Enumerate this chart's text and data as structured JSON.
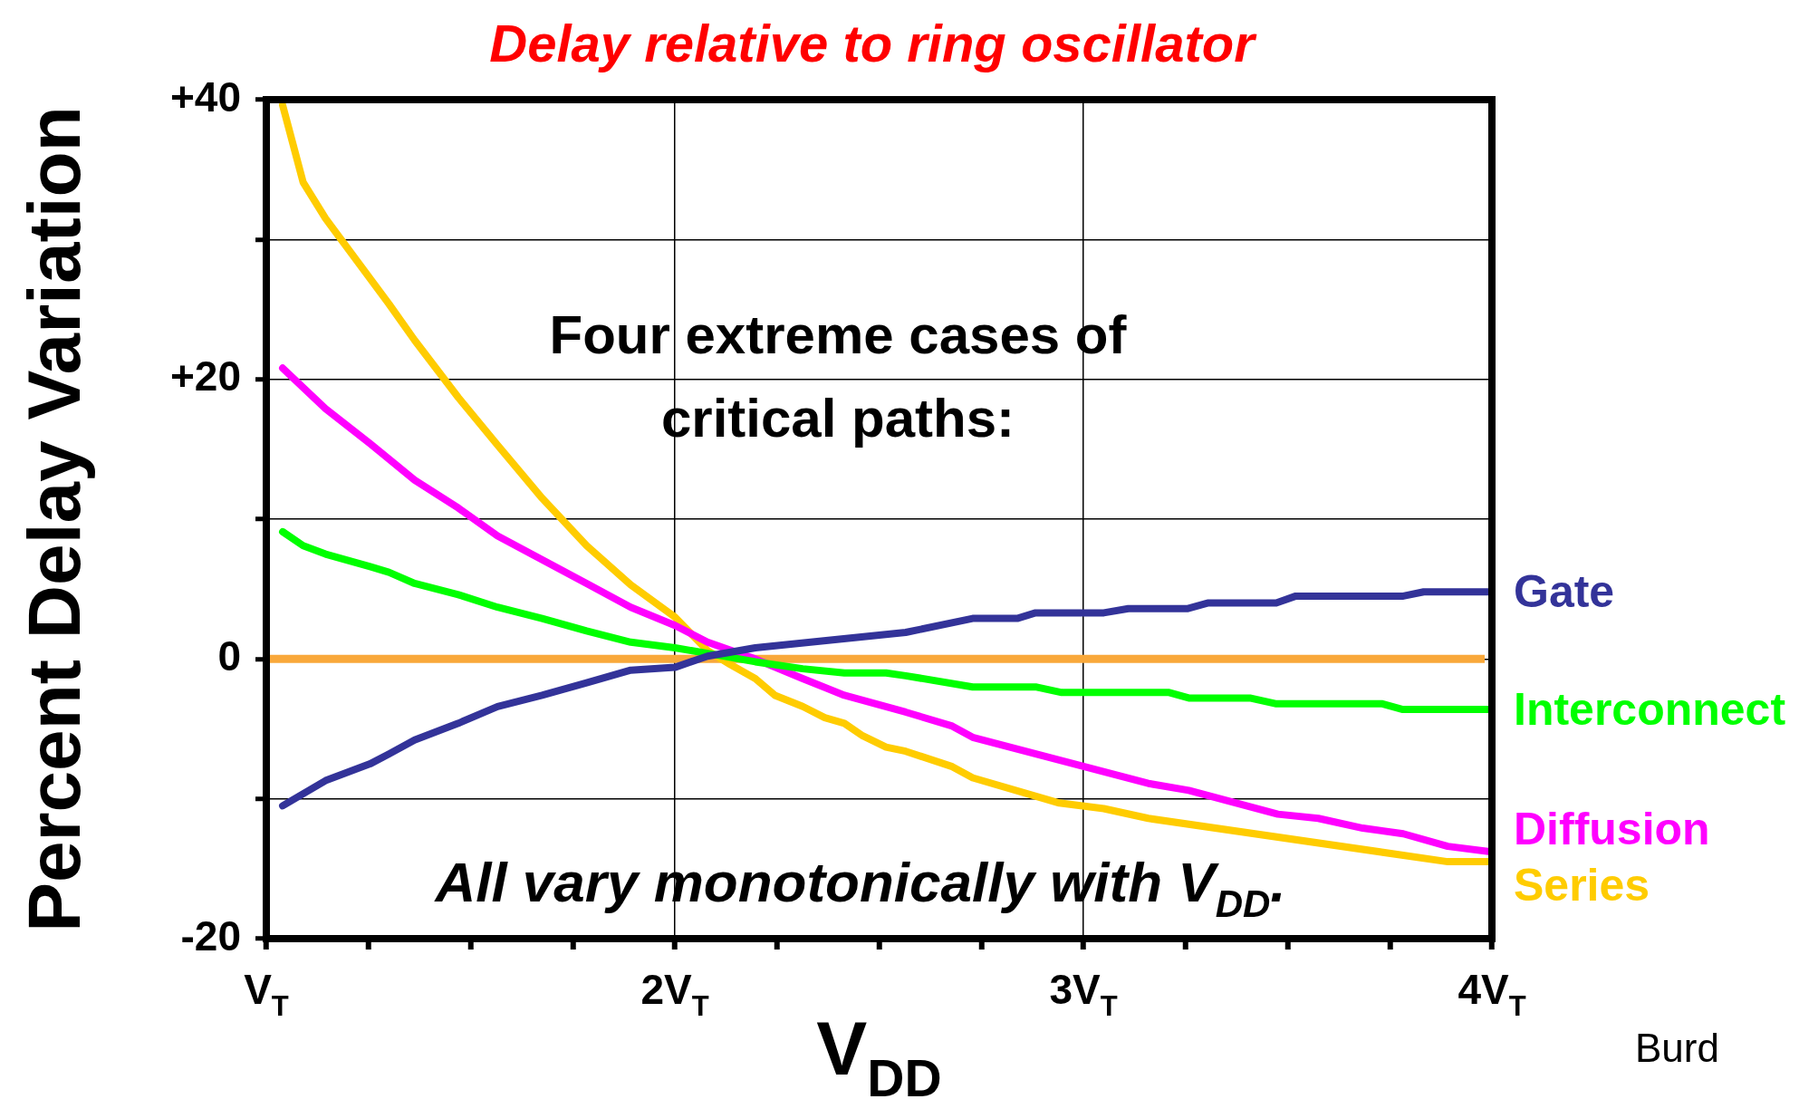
{
  "chart_data": {
    "type": "line",
    "title": "Delay relative to ring oscillator",
    "xlabel": "V$_{DD}$",
    "ylabel": "Percent Delay Variation",
    "annotations": [
      "Four extreme cases of critical paths:",
      "All vary monotonically with V$_{DD}$.",
      "Burd"
    ],
    "xlim": [
      1,
      4
    ],
    "ylim": [
      -20,
      40
    ],
    "xticks": [
      {
        "value": 1,
        "label": "V$_{T}$"
      },
      {
        "value": 1.25,
        "label": null
      },
      {
        "value": 1.5,
        "label": null
      },
      {
        "value": 1.75,
        "label": null
      },
      {
        "value": 2,
        "label": "2V$_{T}$"
      },
      {
        "value": 2.25,
        "label": null
      },
      {
        "value": 2.5,
        "label": null
      },
      {
        "value": 2.75,
        "label": null
      },
      {
        "value": 3,
        "label": "3V$_{T}$"
      },
      {
        "value": 3.25,
        "label": null
      },
      {
        "value": 3.5,
        "label": null
      },
      {
        "value": 3.75,
        "label": null
      },
      {
        "value": 4,
        "label": "4V$_{T}$"
      }
    ],
    "yticks": [
      {
        "value": -20,
        "label": "-20"
      },
      {
        "value": -10,
        "label": null
      },
      {
        "value": 0,
        "label": "0"
      },
      {
        "value": 10,
        "label": null
      },
      {
        "value": 20,
        "label": "+20"
      },
      {
        "value": 30,
        "label": null
      },
      {
        "value": 40,
        "label": "+40"
      }
    ],
    "grid": true,
    "ref_lines": [
      {
        "axis": "y",
        "value": 0,
        "color": "#f9a83a"
      }
    ],
    "series": [
      {
        "name": "Gate",
        "color": "#333399",
        "x": [
          1.04,
          1.145,
          1.254,
          1.3,
          1.363,
          1.47,
          1.566,
          1.675,
          1.784,
          1.892,
          2.0,
          2.08,
          2.197,
          2.565,
          2.729,
          2.838,
          2.883,
          3.05,
          3.11,
          3.254,
          3.304,
          3.472,
          3.52,
          3.783,
          3.833,
          4.0
        ],
        "values": [
          -10.5,
          -8.7,
          -7.5,
          -6.8,
          -5.8,
          -4.6,
          -3.4,
          -2.6,
          -1.7,
          -0.8,
          -0.6,
          0.2,
          0.8,
          1.9,
          2.9,
          2.9,
          3.3,
          3.3,
          3.6,
          3.6,
          4.0,
          4.0,
          4.5,
          4.5,
          4.8,
          4.8
        ]
      },
      {
        "name": "Interconnect",
        "color": "#00ff00",
        "x": [
          1.04,
          1.09,
          1.145,
          1.254,
          1.3,
          1.363,
          1.47,
          1.566,
          1.675,
          1.784,
          1.892,
          2.0,
          2.08,
          2.197,
          2.313,
          2.415,
          2.517,
          2.565,
          2.729,
          2.883,
          2.947,
          3.21,
          3.26,
          3.41,
          3.47,
          3.73,
          3.78,
          4.0
        ],
        "values": [
          9.1,
          8.1,
          7.5,
          6.6,
          6.2,
          5.4,
          4.6,
          3.7,
          2.9,
          2.0,
          1.2,
          0.8,
          0.4,
          -0.2,
          -0.7,
          -1.0,
          -1.0,
          -1.2,
          -2.0,
          -2.0,
          -2.4,
          -2.4,
          -2.8,
          -2.8,
          -3.2,
          -3.2,
          -3.6,
          -3.6
        ]
      },
      {
        "name": "Diffusion",
        "color": "#ff00ff",
        "x": [
          1.04,
          1.145,
          1.254,
          1.363,
          1.47,
          1.566,
          1.675,
          1.784,
          1.892,
          2.0,
          2.08,
          2.197,
          2.313,
          2.415,
          2.565,
          2.679,
          2.729,
          3.159,
          3.258,
          3.476,
          3.575,
          3.684,
          3.783,
          3.892,
          4.0
        ],
        "values": [
          20.8,
          17.9,
          15.4,
          12.8,
          10.8,
          8.8,
          7.1,
          5.4,
          3.7,
          2.4,
          1.2,
          0,
          -1.4,
          -2.6,
          -3.8,
          -4.8,
          -5.6,
          -8.9,
          -9.4,
          -11.1,
          -11.4,
          -12.1,
          -12.5,
          -13.4,
          -13.8
        ]
      },
      {
        "name": "Series",
        "color": "#ffcc00",
        "x": [
          1.04,
          1.09,
          1.145,
          1.3,
          1.363,
          1.47,
          1.566,
          1.675,
          1.784,
          1.892,
          2.0,
          2.08,
          2.136,
          2.197,
          2.245,
          2.313,
          2.367,
          2.415,
          2.46,
          2.517,
          2.565,
          2.679,
          2.729,
          2.941,
          3.05,
          3.159,
          3.892,
          4.0
        ],
        "values": [
          39.6,
          34.1,
          31.5,
          25.4,
          22.8,
          18.7,
          15.3,
          11.5,
          8.1,
          5.3,
          3.0,
          0.6,
          -0.4,
          -1.4,
          -2.6,
          -3.4,
          -4.2,
          -4.6,
          -5.5,
          -6.3,
          -6.6,
          -7.7,
          -8.5,
          -10.3,
          -10.7,
          -11.4,
          -14.5,
          -14.5
        ]
      }
    ]
  }
}
